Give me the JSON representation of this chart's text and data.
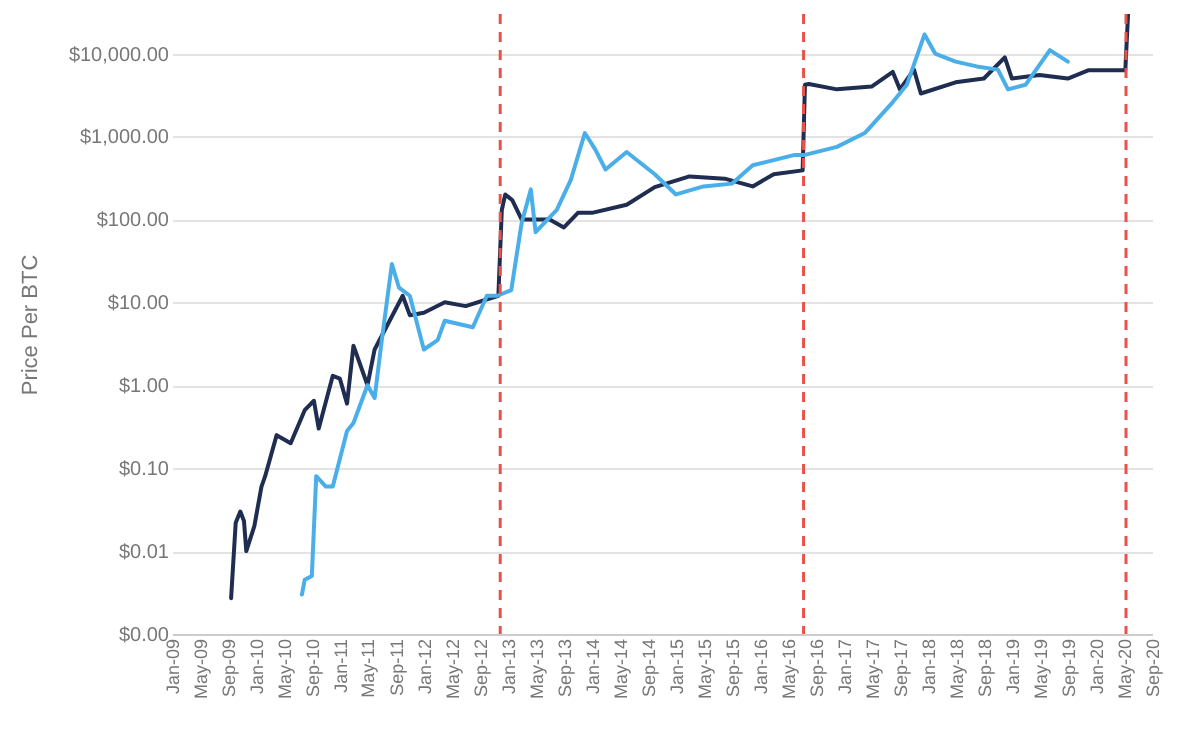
{
  "chart_data": {
    "type": "line",
    "ylabel": "Price Per BTC",
    "log": "y",
    "grid": "y",
    "legend": false,
    "line_style": "solid",
    "ylim": [
      0.001,
      30000
    ],
    "yticks": [
      {
        "value": 0.001,
        "label": "$0.00"
      },
      {
        "value": 0.01,
        "label": "$0.01"
      },
      {
        "value": 0.1,
        "label": "$0.10"
      },
      {
        "value": 1,
        "label": "$1.00"
      },
      {
        "value": 10,
        "label": "$10.00"
      },
      {
        "value": 100,
        "label": "$100.00"
      },
      {
        "value": 1000,
        "label": "$1,000.00"
      },
      {
        "value": 10000,
        "label": "$10,000.00"
      }
    ],
    "xlim": [
      "2009-01-01",
      "2020-09-01"
    ],
    "xticks": [
      {
        "value": "2009-01-01",
        "label": "Jan-09"
      },
      {
        "value": "2009-05-01",
        "label": "May-09"
      },
      {
        "value": "2009-09-01",
        "label": "Sep-09"
      },
      {
        "value": "2010-01-01",
        "label": "Jan-10"
      },
      {
        "value": "2010-05-01",
        "label": "May-10"
      },
      {
        "value": "2010-09-01",
        "label": "Sep-10"
      },
      {
        "value": "2011-01-01",
        "label": "Jan-11"
      },
      {
        "value": "2011-05-01",
        "label": "May-11"
      },
      {
        "value": "2011-09-01",
        "label": "Sep-11"
      },
      {
        "value": "2012-01-01",
        "label": "Jan-12"
      },
      {
        "value": "2012-05-01",
        "label": "May-12"
      },
      {
        "value": "2012-09-01",
        "label": "Sep-12"
      },
      {
        "value": "2013-01-01",
        "label": "Jan-13"
      },
      {
        "value": "2013-05-01",
        "label": "May-13"
      },
      {
        "value": "2013-09-01",
        "label": "Sep-13"
      },
      {
        "value": "2014-01-01",
        "label": "Jan-14"
      },
      {
        "value": "2014-05-01",
        "label": "May-14"
      },
      {
        "value": "2014-09-01",
        "label": "Sep-14"
      },
      {
        "value": "2015-01-01",
        "label": "Jan-15"
      },
      {
        "value": "2015-05-01",
        "label": "May-15"
      },
      {
        "value": "2015-09-01",
        "label": "Sep-15"
      },
      {
        "value": "2016-01-01",
        "label": "Jan-16"
      },
      {
        "value": "2016-05-01",
        "label": "May-16"
      },
      {
        "value": "2016-09-01",
        "label": "Sep-16"
      },
      {
        "value": "2017-01-01",
        "label": "Jan-17"
      },
      {
        "value": "2017-05-01",
        "label": "May-17"
      },
      {
        "value": "2017-09-01",
        "label": "Sep-17"
      },
      {
        "value": "2018-01-01",
        "label": "Jan-18"
      },
      {
        "value": "2018-05-01",
        "label": "May-18"
      },
      {
        "value": "2018-09-01",
        "label": "Sep-18"
      },
      {
        "value": "2019-01-01",
        "label": "Jan-19"
      },
      {
        "value": "2019-05-01",
        "label": "May-19"
      },
      {
        "value": "2019-09-01",
        "label": "Sep-19"
      },
      {
        "value": "2020-01-01",
        "label": "Jan-20"
      },
      {
        "value": "2020-05-01",
        "label": "May-20"
      },
      {
        "value": "2020-09-01",
        "label": "Sep-20"
      }
    ],
    "ref_lines": [
      {
        "axis": "x",
        "value": "2012-11-28",
        "color": "#e8524a",
        "line_style": "dashed"
      },
      {
        "axis": "x",
        "value": "2016-07-09",
        "color": "#e8524a",
        "line_style": "dashed"
      },
      {
        "axis": "x",
        "value": "2020-05-11",
        "color": "#e8524a",
        "line_style": "dashed"
      }
    ],
    "series": [
      {
        "color": "#1f2d50",
        "x": [
          "2009-09-15",
          "2009-10-05",
          "2009-10-25",
          "2009-11-10",
          "2009-11-20",
          "2009-12-25",
          "2010-01-25",
          "2010-02-10",
          "2010-04-01",
          "2010-06-01",
          "2010-08-01",
          "2010-09-10",
          "2010-10-01",
          "2010-12-01",
          "2011-01-01",
          "2011-02-01",
          "2011-03-01",
          "2011-05-01",
          "2011-06-01",
          "2011-10-01",
          "2011-11-01",
          "2012-01-01",
          "2012-04-01",
          "2012-07-01",
          "2012-11-20",
          "2012-12-05",
          "2012-12-20",
          "2013-01-20",
          "2013-03-01",
          "2013-07-01",
          "2013-09-01",
          "2013-11-01",
          "2014-01-01",
          "2014-06-01",
          "2014-10-01",
          "2015-03-01",
          "2015-08-01",
          "2015-12-01",
          "2016-03-01",
          "2016-07-05",
          "2016-07-15",
          "2016-08-01",
          "2016-12-01",
          "2017-05-01",
          "2017-08-01",
          "2017-09-01",
          "2017-11-01",
          "2017-12-01",
          "2018-05-01",
          "2018-09-01",
          "2018-12-01",
          "2019-01-01",
          "2019-05-01",
          "2019-09-01",
          "2019-12-01",
          "2020-05-08",
          "2020-05-20"
        ],
        "values": [
          0.0027,
          0.022,
          0.03,
          0.023,
          0.01,
          0.02,
          0.06,
          0.08,
          0.25,
          0.2,
          0.5,
          0.65,
          0.3,
          1.3,
          1.2,
          0.6,
          3,
          1,
          2.7,
          12,
          7,
          7.5,
          10,
          9,
          12,
          130,
          200,
          170,
          100,
          100,
          80,
          120,
          120,
          150,
          245,
          330,
          310,
          250,
          350,
          390,
          4200,
          4300,
          3700,
          4000,
          6000,
          3700,
          6400,
          3300,
          4500,
          5000,
          9000,
          5000,
          5500,
          5000,
          6300,
          6300,
          30000
        ]
      },
      {
        "color": "#4aaee8",
        "x": [
          "2010-07-20",
          "2010-08-01",
          "2010-09-01",
          "2010-09-20",
          "2010-11-01",
          "2010-12-01",
          "2011-02-01",
          "2011-03-01",
          "2011-05-01",
          "2011-06-01",
          "2011-07-01",
          "2011-08-15",
          "2011-09-15",
          "2011-11-01",
          "2012-01-01",
          "2012-03-01",
          "2012-04-01",
          "2012-08-01",
          "2012-10-01",
          "2012-11-15",
          "2013-01-15",
          "2013-03-01",
          "2013-04-10",
          "2013-05-01",
          "2013-08-01",
          "2013-10-01",
          "2013-12-01",
          "2014-01-15",
          "2014-03-01",
          "2014-06-01",
          "2014-10-01",
          "2015-01-01",
          "2015-05-01",
          "2015-09-01",
          "2015-12-01",
          "2016-06-01",
          "2016-07-15",
          "2016-12-01",
          "2017-04-01",
          "2017-08-01",
          "2017-10-01",
          "2017-12-17",
          "2018-02-01",
          "2018-05-01",
          "2018-08-01",
          "2018-11-01",
          "2018-12-15",
          "2019-03-01",
          "2019-06-15",
          "2019-09-01"
        ],
        "values": [
          0.003,
          0.0045,
          0.005,
          0.08,
          0.06,
          0.06,
          0.28,
          0.35,
          1,
          0.7,
          3.3,
          29,
          15,
          12,
          2.7,
          3.5,
          6,
          5,
          12,
          12,
          14,
          90,
          230,
          70,
          130,
          300,
          1100,
          700,
          400,
          650,
          350,
          200,
          250,
          270,
          450,
          600,
          600,
          750,
          1100,
          2600,
          4200,
          17000,
          10000,
          8000,
          7000,
          6400,
          3700,
          4200,
          11000,
          8000
        ]
      }
    ]
  }
}
